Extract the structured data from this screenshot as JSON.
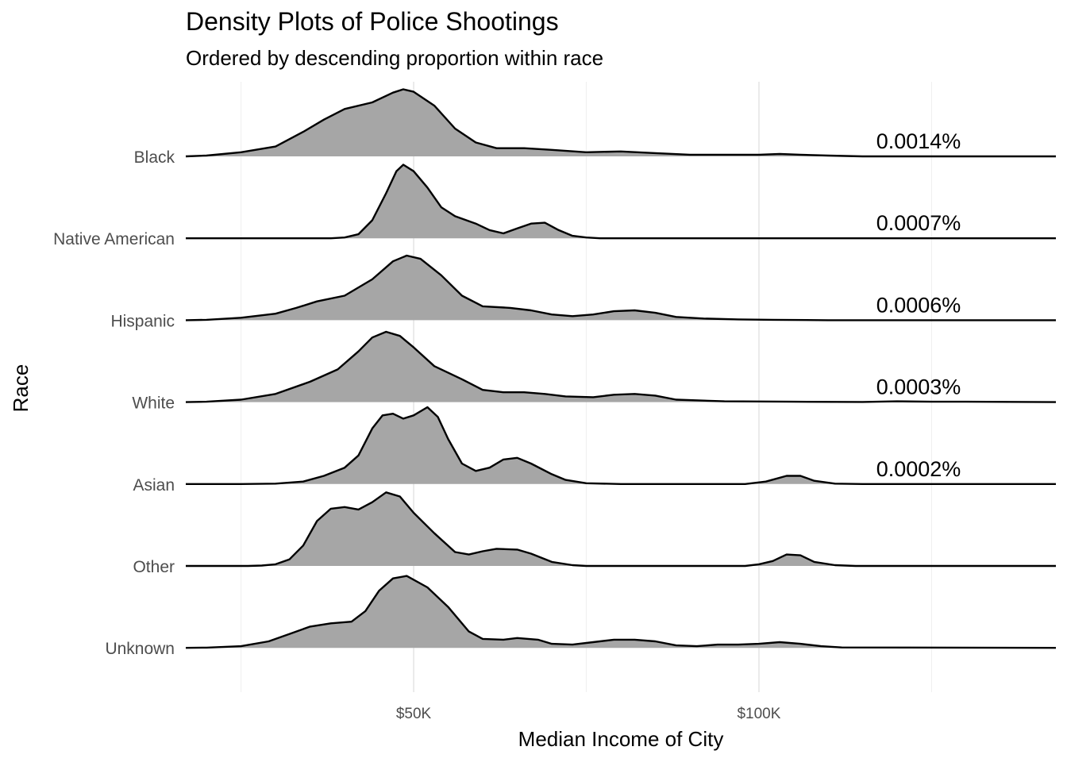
{
  "chart_data": {
    "type": "ridgeline",
    "title": "Density Plots of Police Shootings",
    "subtitle": "Ordered by descending proportion within race",
    "xlabel": "Median Income of City",
    "ylabel": "Race",
    "x_ticks": [
      {
        "value": 50000,
        "label": "$50K"
      },
      {
        "value": 100000,
        "label": "$100K"
      }
    ],
    "xlim": [
      17000,
      143000
    ],
    "grid": true,
    "fill_color": "#a6a6a6",
    "line_color": "#000000",
    "categories": [
      "Black",
      "Native American",
      "Hispanic",
      "White",
      "Asian",
      "Other",
      "Unknown"
    ],
    "series": [
      {
        "category": "Black",
        "proportion_label": "0.0014%",
        "points": [
          [
            17000,
            0
          ],
          [
            20000,
            0.01
          ],
          [
            25000,
            0.05
          ],
          [
            30000,
            0.12
          ],
          [
            34000,
            0.3
          ],
          [
            37000,
            0.45
          ],
          [
            40000,
            0.58
          ],
          [
            44000,
            0.66
          ],
          [
            47000,
            0.78
          ],
          [
            48500,
            0.82
          ],
          [
            50000,
            0.79
          ],
          [
            53000,
            0.62
          ],
          [
            56000,
            0.34
          ],
          [
            59000,
            0.17
          ],
          [
            62000,
            0.1
          ],
          [
            66000,
            0.1
          ],
          [
            70000,
            0.08
          ],
          [
            75000,
            0.05
          ],
          [
            80000,
            0.06
          ],
          [
            85000,
            0.04
          ],
          [
            90000,
            0.02
          ],
          [
            95000,
            0.02
          ],
          [
            100000,
            0.02
          ],
          [
            103000,
            0.03
          ],
          [
            106000,
            0.02
          ],
          [
            110000,
            0.01
          ],
          [
            115000,
            0
          ],
          [
            143000,
            0
          ]
        ]
      },
      {
        "category": "Native American",
        "proportion_label": "0.0007%",
        "points": [
          [
            17000,
            0
          ],
          [
            38000,
            0
          ],
          [
            40000,
            0.01
          ],
          [
            42000,
            0.05
          ],
          [
            44000,
            0.22
          ],
          [
            46000,
            0.55
          ],
          [
            47500,
            0.82
          ],
          [
            48500,
            0.9
          ],
          [
            50000,
            0.82
          ],
          [
            52000,
            0.62
          ],
          [
            54000,
            0.38
          ],
          [
            56000,
            0.27
          ],
          [
            59000,
            0.18
          ],
          [
            61000,
            0.1
          ],
          [
            63000,
            0.06
          ],
          [
            65000,
            0.12
          ],
          [
            67000,
            0.18
          ],
          [
            69000,
            0.19
          ],
          [
            71000,
            0.1
          ],
          [
            73000,
            0.03
          ],
          [
            75000,
            0.01
          ],
          [
            77000,
            0
          ],
          [
            143000,
            0
          ]
        ]
      },
      {
        "category": "Hispanic",
        "proportion_label": "0.0006%",
        "points": [
          [
            17000,
            0
          ],
          [
            20000,
            0.005
          ],
          [
            25000,
            0.03
          ],
          [
            30000,
            0.08
          ],
          [
            33000,
            0.15
          ],
          [
            36000,
            0.23
          ],
          [
            40000,
            0.3
          ],
          [
            44000,
            0.5
          ],
          [
            47000,
            0.72
          ],
          [
            49000,
            0.79
          ],
          [
            51000,
            0.75
          ],
          [
            54000,
            0.55
          ],
          [
            57000,
            0.3
          ],
          [
            60000,
            0.17
          ],
          [
            64000,
            0.15
          ],
          [
            67000,
            0.12
          ],
          [
            70000,
            0.07
          ],
          [
            73000,
            0.05
          ],
          [
            76000,
            0.07
          ],
          [
            79000,
            0.11
          ],
          [
            82000,
            0.12
          ],
          [
            85000,
            0.09
          ],
          [
            88000,
            0.04
          ],
          [
            92000,
            0.02
          ],
          [
            97000,
            0.01
          ],
          [
            102000,
            0.005
          ],
          [
            110000,
            0
          ],
          [
            143000,
            0
          ]
        ]
      },
      {
        "category": "White",
        "proportion_label": "0.0003%",
        "points": [
          [
            17000,
            0
          ],
          [
            20000,
            0.005
          ],
          [
            25000,
            0.03
          ],
          [
            30000,
            0.1
          ],
          [
            35000,
            0.25
          ],
          [
            39000,
            0.4
          ],
          [
            42000,
            0.62
          ],
          [
            44000,
            0.79
          ],
          [
            46000,
            0.86
          ],
          [
            48000,
            0.81
          ],
          [
            50000,
            0.67
          ],
          [
            53000,
            0.44
          ],
          [
            57000,
            0.28
          ],
          [
            60000,
            0.15
          ],
          [
            63000,
            0.12
          ],
          [
            66000,
            0.12
          ],
          [
            69000,
            0.1
          ],
          [
            72000,
            0.07
          ],
          [
            76000,
            0.06
          ],
          [
            79000,
            0.09
          ],
          [
            82000,
            0.1
          ],
          [
            85000,
            0.08
          ],
          [
            88000,
            0.03
          ],
          [
            95000,
            0.01
          ],
          [
            105000,
            0.005
          ],
          [
            115000,
            0.002
          ],
          [
            120000,
            0.01
          ],
          [
            125000,
            0.005
          ],
          [
            130000,
            0.005
          ],
          [
            143000,
            0
          ]
        ]
      },
      {
        "category": "Asian",
        "proportion_label": "0.0002%",
        "points": [
          [
            17000,
            0
          ],
          [
            25000,
            0
          ],
          [
            30000,
            0.005
          ],
          [
            34000,
            0.03
          ],
          [
            37000,
            0.1
          ],
          [
            40000,
            0.2
          ],
          [
            42000,
            0.35
          ],
          [
            44000,
            0.68
          ],
          [
            45500,
            0.84
          ],
          [
            47000,
            0.86
          ],
          [
            48500,
            0.8
          ],
          [
            50000,
            0.84
          ],
          [
            52000,
            0.94
          ],
          [
            53500,
            0.82
          ],
          [
            55000,
            0.55
          ],
          [
            57000,
            0.25
          ],
          [
            59000,
            0.16
          ],
          [
            61000,
            0.2
          ],
          [
            63000,
            0.3
          ],
          [
            65000,
            0.32
          ],
          [
            67000,
            0.25
          ],
          [
            70000,
            0.12
          ],
          [
            72000,
            0.05
          ],
          [
            75000,
            0.01
          ],
          [
            80000,
            0
          ],
          [
            98000,
            0
          ],
          [
            101000,
            0.03
          ],
          [
            104000,
            0.1
          ],
          [
            106000,
            0.1
          ],
          [
            108000,
            0.04
          ],
          [
            111000,
            0.005
          ],
          [
            115000,
            0
          ],
          [
            143000,
            0
          ]
        ]
      },
      {
        "category": "Other",
        "proportion_label": "",
        "points": [
          [
            17000,
            0
          ],
          [
            26000,
            0
          ],
          [
            28000,
            0.005
          ],
          [
            30000,
            0.02
          ],
          [
            32000,
            0.08
          ],
          [
            34000,
            0.25
          ],
          [
            36000,
            0.55
          ],
          [
            38000,
            0.7
          ],
          [
            40000,
            0.72
          ],
          [
            42000,
            0.69
          ],
          [
            44000,
            0.78
          ],
          [
            46000,
            0.9
          ],
          [
            48000,
            0.85
          ],
          [
            50000,
            0.65
          ],
          [
            53000,
            0.4
          ],
          [
            56000,
            0.17
          ],
          [
            58000,
            0.14
          ],
          [
            60000,
            0.18
          ],
          [
            62000,
            0.21
          ],
          [
            65000,
            0.2
          ],
          [
            67000,
            0.15
          ],
          [
            70000,
            0.05
          ],
          [
            73000,
            0.01
          ],
          [
            75000,
            0
          ],
          [
            98000,
            0
          ],
          [
            100000,
            0.02
          ],
          [
            102000,
            0.06
          ],
          [
            104000,
            0.14
          ],
          [
            106000,
            0.13
          ],
          [
            108000,
            0.05
          ],
          [
            111000,
            0.01
          ],
          [
            114000,
            0
          ],
          [
            143000,
            0
          ]
        ]
      },
      {
        "category": "Unknown",
        "proportion_label": "",
        "points": [
          [
            17000,
            0
          ],
          [
            20000,
            0.003
          ],
          [
            25000,
            0.02
          ],
          [
            29000,
            0.08
          ],
          [
            32000,
            0.17
          ],
          [
            35000,
            0.26
          ],
          [
            38000,
            0.3
          ],
          [
            41000,
            0.32
          ],
          [
            43000,
            0.45
          ],
          [
            45000,
            0.7
          ],
          [
            47000,
            0.85
          ],
          [
            49000,
            0.88
          ],
          [
            52000,
            0.74
          ],
          [
            55000,
            0.5
          ],
          [
            58000,
            0.2
          ],
          [
            60000,
            0.11
          ],
          [
            63000,
            0.1
          ],
          [
            65000,
            0.12
          ],
          [
            68000,
            0.1
          ],
          [
            70000,
            0.05
          ],
          [
            73000,
            0.04
          ],
          [
            76000,
            0.07
          ],
          [
            79000,
            0.1
          ],
          [
            82000,
            0.1
          ],
          [
            85000,
            0.08
          ],
          [
            88000,
            0.03
          ],
          [
            91000,
            0.02
          ],
          [
            94000,
            0.04
          ],
          [
            97000,
            0.04
          ],
          [
            100000,
            0.05
          ],
          [
            103000,
            0.07
          ],
          [
            106000,
            0.05
          ],
          [
            109000,
            0.02
          ],
          [
            112000,
            0.005
          ],
          [
            143000,
            0
          ]
        ]
      }
    ]
  }
}
